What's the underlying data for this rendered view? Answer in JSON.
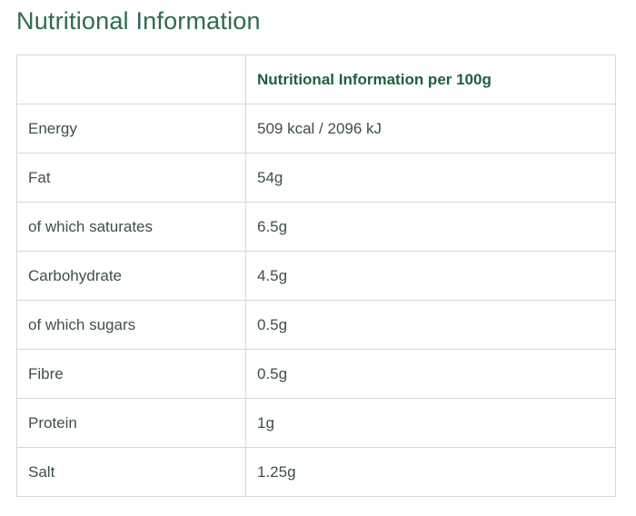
{
  "page": {
    "title": "Nutritional Information"
  },
  "table": {
    "header": {
      "label_col": "",
      "value_col": "Nutritional Information per 100g"
    },
    "rows": [
      {
        "label": "Energy",
        "value": "509 kcal / 2096 kJ"
      },
      {
        "label": "Fat",
        "value": "54g"
      },
      {
        "label": "of which saturates",
        "value": "6.5g"
      },
      {
        "label": "Carbohydrate",
        "value": "4.5g"
      },
      {
        "label": "of which sugars",
        "value": "0.5g"
      },
      {
        "label": "Fibre",
        "value": "0.5g"
      },
      {
        "label": "Protein",
        "value": "1g"
      },
      {
        "label": "Salt",
        "value": "1.25g"
      }
    ]
  },
  "colors": {
    "heading_text": "#2e6b4c",
    "table_header_text": "#1e5f3d",
    "body_text": "#3e4f4c",
    "border": "#d8d8d8",
    "background": "#ffffff"
  }
}
